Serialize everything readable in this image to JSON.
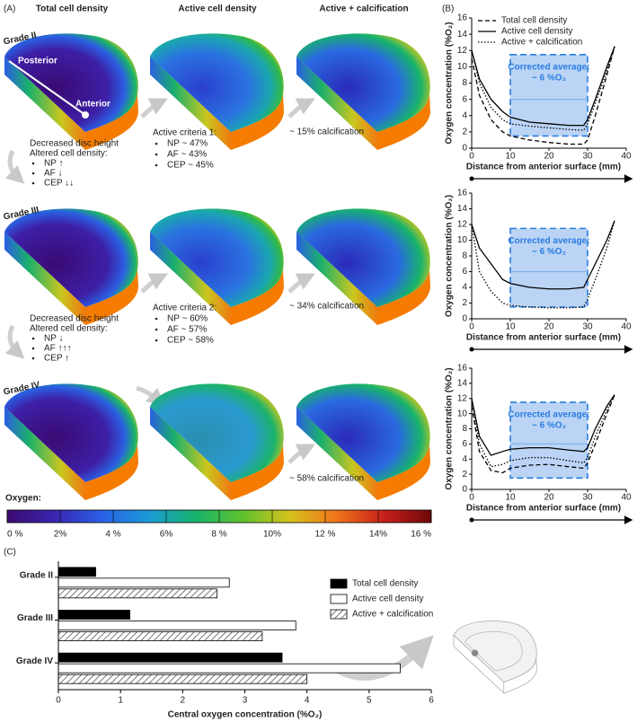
{
  "panel_labels": [
    "(A)",
    "(B)",
    "(C)"
  ],
  "panel_a": {
    "columns": [
      "Total cell density",
      "Active cell density",
      "Active + calcification"
    ],
    "rows": [
      "Grade II",
      "Grade III",
      "Grade IV"
    ],
    "orientation": [
      "Posterior",
      "Anterior"
    ],
    "transitions": [
      {
        "title": [
          "Decreased disc height",
          "Altered cell density:"
        ],
        "items": [
          "NP ↑",
          "AF ↓",
          "CEP ↓↓"
        ]
      },
      {
        "title": [
          "Decreased disc height",
          "Altered cell density:"
        ],
        "items": [
          "NP ↓",
          "AF ↑↑↑",
          "CEP ↑"
        ]
      }
    ],
    "criteria": [
      {
        "title": "Active criteria 1:",
        "items": [
          "NP ~ 47%",
          "AF ~  43%",
          "CEP ~ 45%"
        ]
      },
      {
        "title": "Active criteria 2:",
        "items": [
          "NP ~ 60%",
          "AF ~  57%",
          "CEP ~ 58%"
        ]
      }
    ],
    "calcification": [
      "~ 15% calcification",
      "~ 34% calcification",
      "~ 58% calcification"
    ],
    "colorbar": {
      "title": "Oxygen:",
      "lim": [
        0,
        16
      ],
      "ticks": [
        {
          "value": 0,
          "label": "0 %"
        },
        {
          "value": 2,
          "label": "2%"
        },
        {
          "value": 4,
          "label": "4 %"
        },
        {
          "value": 6,
          "label": "6%"
        },
        {
          "value": 8,
          "label": "8 %"
        },
        {
          "value": 10,
          "label": "10%"
        },
        {
          "value": 12,
          "label": "12 %"
        },
        {
          "value": 14,
          "label": "14%"
        },
        {
          "value": 16,
          "label": "16 %"
        }
      ],
      "colors": [
        "#3b0a6e",
        "#3a25b0",
        "#2a5fe6",
        "#1a9ad6",
        "#17b36b",
        "#5fc22c",
        "#d6c21d",
        "#f0731a",
        "#c6201a",
        "#6e0808"
      ]
    }
  },
  "chart_data": [
    {
      "type": "line",
      "ylabel": "Oxygen concentration (%O₂)",
      "xlabel": "Distance from anterior surface (mm)",
      "x": [
        0,
        2,
        5,
        8,
        10,
        15,
        20,
        25,
        29,
        30,
        32,
        35,
        37
      ],
      "series": [
        {
          "name": "Total cell density",
          "color": "#000000",
          "dash": "dashed",
          "values": [
            11,
            6.5,
            3.5,
            2,
            1.5,
            1,
            0.7,
            0.5,
            0.5,
            1,
            4,
            9,
            12.5
          ]
        },
        {
          "name": "Active cell density",
          "color": "#000000",
          "dash": "solid",
          "values": [
            12,
            8.5,
            6,
            4.5,
            3.8,
            3.2,
            3,
            2.8,
            2.8,
            3.5,
            6,
            10,
            12.5
          ]
        },
        {
          "name": "Active + calcification",
          "color": "#000000",
          "dash": "dotted",
          "values": [
            12,
            8,
            5,
            3.5,
            3,
            2.7,
            2.5,
            2.3,
            2.2,
            3,
            5.5,
            9.5,
            12.5
          ]
        }
      ],
      "xlim": [
        0,
        40
      ],
      "ylim": [
        0,
        16
      ],
      "xticks": [
        0,
        10,
        20,
        30,
        40
      ],
      "yticks": [
        0,
        2,
        4,
        6,
        8,
        10,
        12,
        14,
        16
      ],
      "highlight": {
        "x": [
          10,
          30
        ],
        "y": [
          1.5,
          11.5
        ],
        "average": 6
      },
      "annotation": [
        "Corrected average:",
        "~ 6 %O₂"
      ],
      "legend": "top"
    },
    {
      "type": "line",
      "ylabel": "Oxygen concentration (%O₂)",
      "xlabel": "Distance from anterior surface (mm)",
      "x": [
        0,
        2,
        5,
        8,
        10,
        15,
        20,
        25,
        29,
        30,
        32,
        35,
        37
      ],
      "series": [
        {
          "name": "Active cell density",
          "color": "#000000",
          "dash": "solid",
          "values": [
            12,
            9,
            7,
            5,
            4.5,
            4,
            3.8,
            3.8,
            4,
            5,
            7,
            10,
            12.5
          ]
        },
        {
          "name": "Active + calcification",
          "color": "#000000",
          "dash": "dotted",
          "values": [
            12,
            6,
            3.5,
            2,
            1.7,
            1.5,
            1.4,
            1.4,
            1.5,
            2.5,
            5,
            9,
            12.5
          ]
        }
      ],
      "xlim": [
        0,
        40
      ],
      "ylim": [
        0,
        16
      ],
      "xticks": [
        0,
        10,
        20,
        30,
        40
      ],
      "yticks": [
        0,
        2,
        4,
        6,
        8,
        10,
        12,
        14,
        16
      ],
      "highlight": {
        "x": [
          10,
          30
        ],
        "y": [
          1.5,
          11.5
        ],
        "average": 6
      },
      "annotation": [
        "Corrected average:",
        "~ 6 %O₂"
      ]
    },
    {
      "type": "line",
      "ylabel": "Oxygen concentration (%O₂)",
      "xlabel": "Distance from anterior surface (mm)",
      "x": [
        0,
        2,
        5,
        8,
        10,
        15,
        20,
        25,
        29,
        30,
        32,
        35,
        37
      ],
      "series": [
        {
          "name": "Total cell density",
          "color": "#000000",
          "dash": "dashed",
          "values": [
            11,
            5,
            2.5,
            2.2,
            2.8,
            3.2,
            3.3,
            3,
            2.8,
            3.5,
            6,
            10,
            12.5
          ]
        },
        {
          "name": "Active cell density",
          "color": "#000000",
          "dash": "solid",
          "values": [
            12,
            7,
            4.5,
            5,
            5.3,
            5.5,
            5.5,
            5.2,
            5,
            5.5,
            8,
            11,
            12.5
          ]
        },
        {
          "name": "Active + calcification",
          "color": "#000000",
          "dash": "dotted",
          "values": [
            12,
            6,
            3,
            3.3,
            3.8,
            4.2,
            4.2,
            3.8,
            3.5,
            4.2,
            7,
            10.5,
            12.5
          ]
        }
      ],
      "xlim": [
        0,
        40
      ],
      "ylim": [
        0,
        16
      ],
      "xticks": [
        0,
        10,
        20,
        30,
        40
      ],
      "yticks": [
        0,
        2,
        4,
        6,
        8,
        10,
        12,
        14,
        16
      ],
      "highlight": {
        "x": [
          10,
          30
        ],
        "y": [
          1.5,
          11.5
        ],
        "average": 6
      },
      "annotation": [
        "Corrected average:",
        "~ 6 %O₂"
      ]
    },
    {
      "type": "barh",
      "xlabel": "Central oxygen concentration (%O₂)",
      "categories": [
        "Grade II",
        "Grade III",
        "Grade IV"
      ],
      "series": [
        {
          "name": "Total cell density",
          "color": "#000000",
          "values": [
            0.6,
            1.15,
            3.6
          ]
        },
        {
          "name": "Active cell density",
          "color": "#ffffff",
          "values": [
            2.75,
            3.82,
            5.5
          ]
        },
        {
          "name": "Active + calcification",
          "color": "#ffffff",
          "hatch": true,
          "values": [
            2.55,
            3.28,
            4.0
          ]
        }
      ],
      "xlim": [
        0,
        6
      ],
      "xticks": [
        0,
        1,
        2,
        3,
        4,
        5,
        6
      ],
      "legend": "right"
    }
  ]
}
